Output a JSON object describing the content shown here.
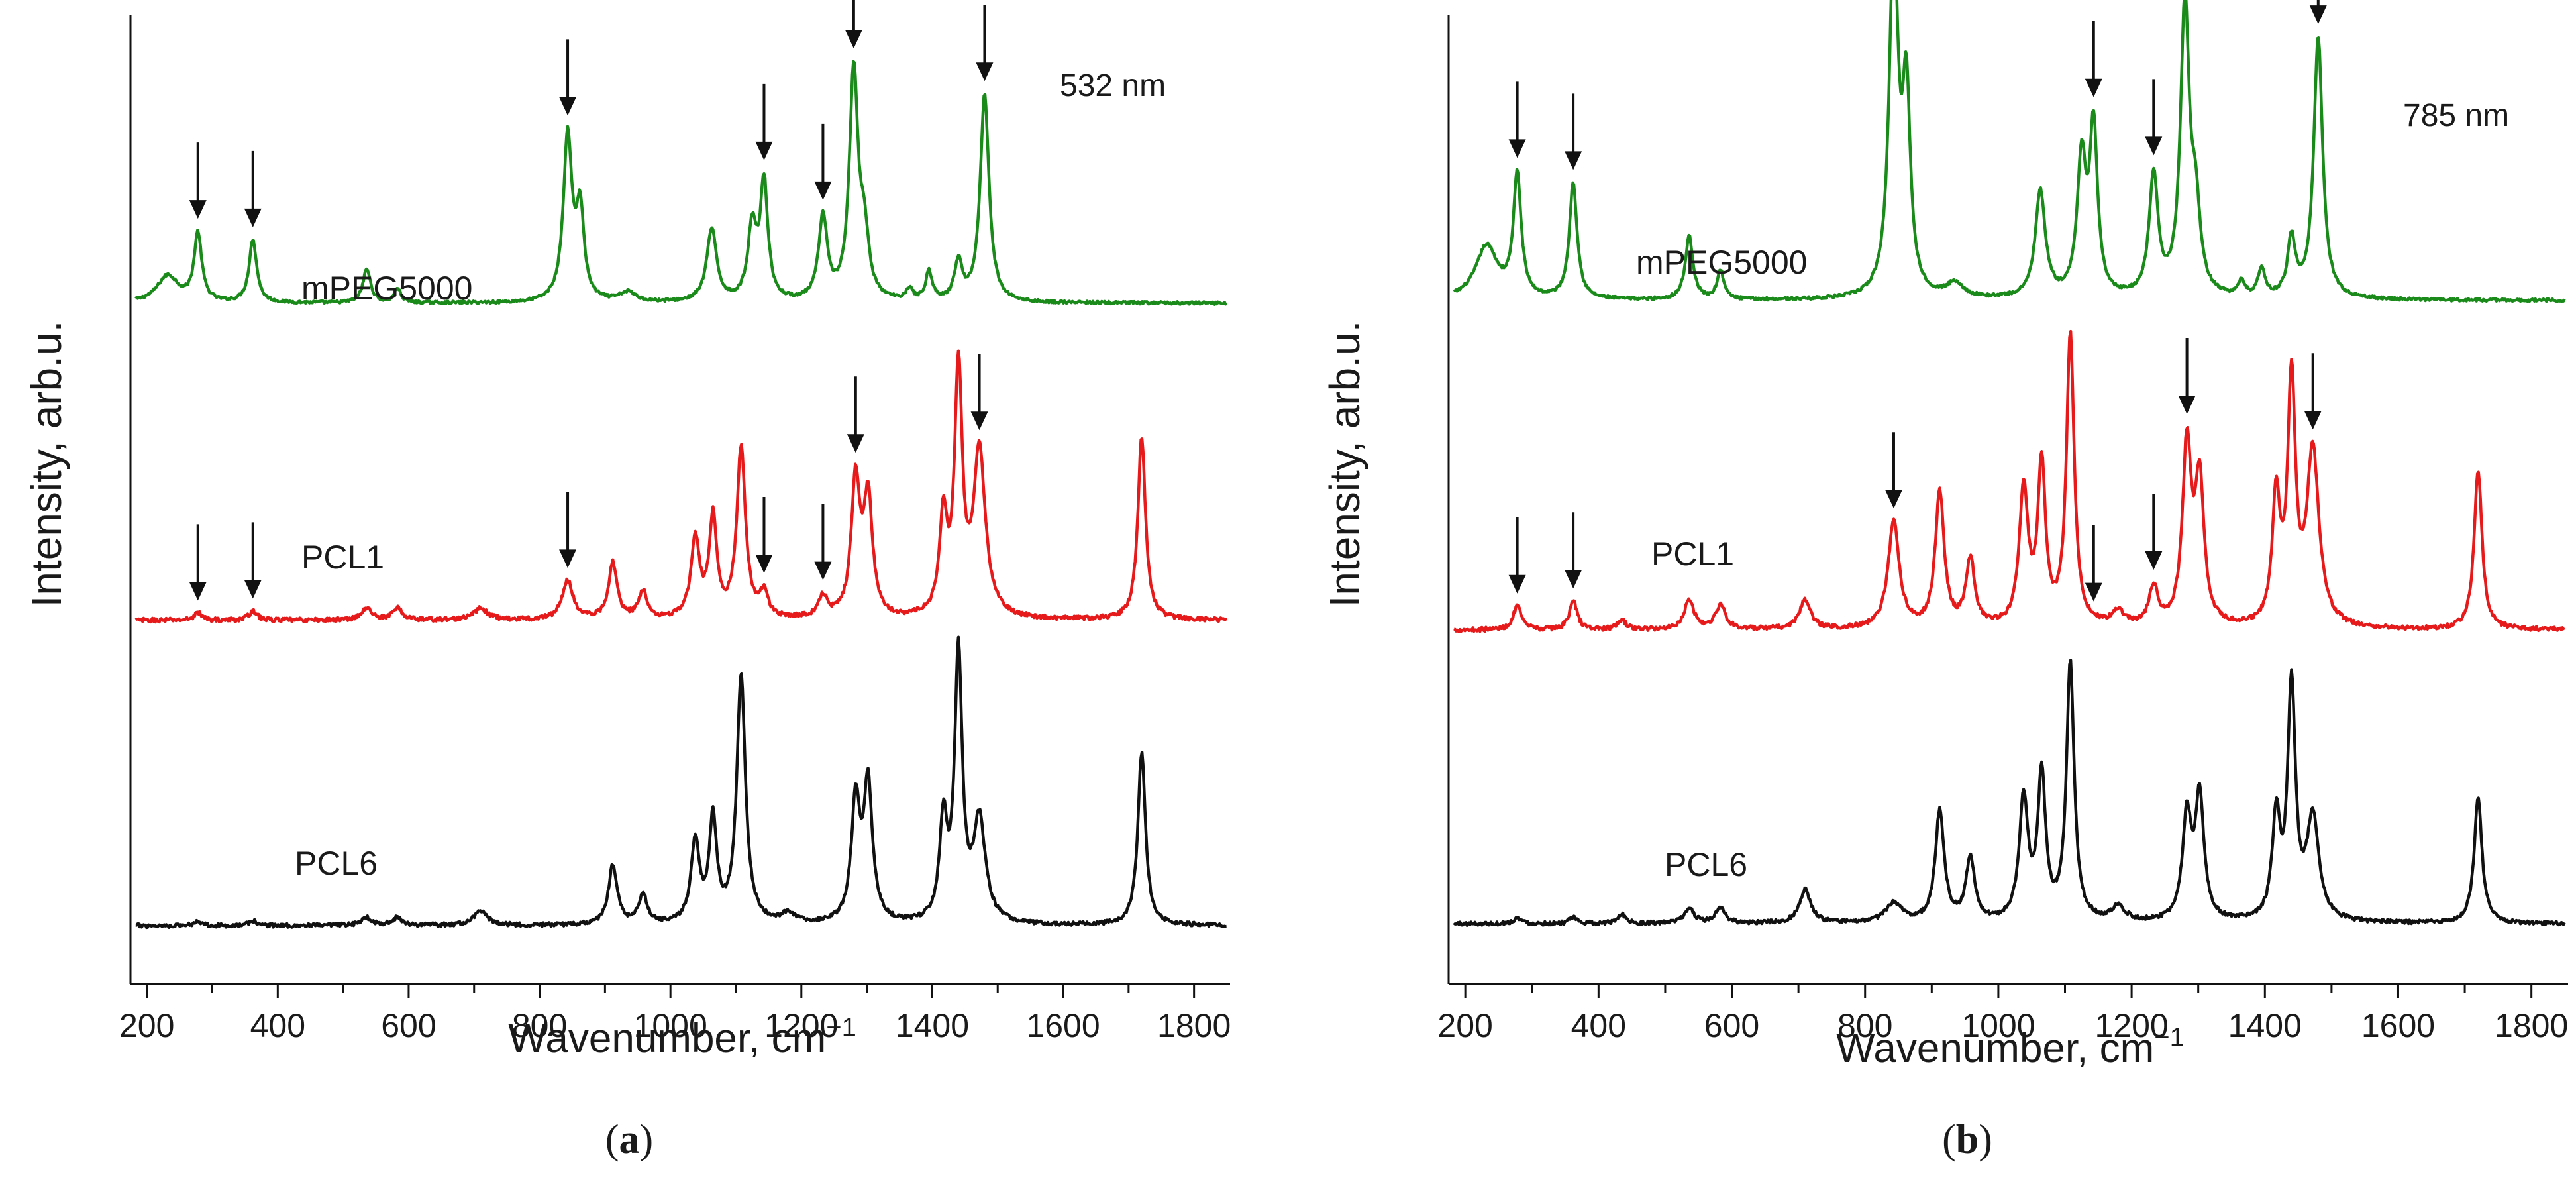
{
  "chart_data": [
    {
      "type": "line",
      "panel_label": "(a)",
      "panel_letter": "a",
      "annotation": "532 nm",
      "xlabel": "Wavenumber, cm",
      "xlabel_superscript": "−1",
      "ylabel": "Intensity, arb.u.",
      "xlim": [
        175,
        1855
      ],
      "ylim": [
        0,
        1
      ],
      "xticks": [
        200,
        400,
        600,
        800,
        1000,
        1200,
        1400,
        1600,
        1800
      ],
      "grid": false,
      "series": [
        {
          "name": "mPEG5000",
          "color": "#1a8a1a",
          "baseline": 0.702,
          "noise": 0.0015,
          "peaks": [
            [
              232,
              0.028,
              40
            ],
            [
              278,
              0.07,
              14
            ],
            [
              362,
              0.065,
              14
            ],
            [
              536,
              0.035,
              14
            ],
            [
              583,
              0.015,
              12
            ],
            [
              843,
              0.17,
              16
            ],
            [
              862,
              0.09,
              14
            ],
            [
              935,
              0.01,
              30
            ],
            [
              1063,
              0.075,
              18
            ],
            [
              1125,
              0.075,
              16
            ],
            [
              1143,
              0.12,
              14
            ],
            [
              1233,
              0.085,
              16
            ],
            [
              1280,
              0.235,
              16
            ],
            [
              1296,
              0.06,
              16
            ],
            [
              1365,
              0.012,
              12
            ],
            [
              1395,
              0.03,
              12
            ],
            [
              1440,
              0.04,
              14
            ],
            [
              1480,
              0.215,
              16
            ]
          ],
          "arrows": [
            278,
            362,
            843,
            1143,
            1233,
            1280,
            1480
          ]
        },
        {
          "name": "PCL1",
          "color": "#e61a1a",
          "baseline": 0.375,
          "noise": 0.0022,
          "peaks": [
            [
              278,
              0.008,
              14
            ],
            [
              362,
              0.01,
              14
            ],
            [
              536,
              0.012,
              20
            ],
            [
              583,
              0.012,
              18
            ],
            [
              710,
              0.012,
              25
            ],
            [
              843,
              0.04,
              20
            ],
            [
              912,
              0.058,
              16
            ],
            [
              958,
              0.028,
              16
            ],
            [
              1038,
              0.08,
              16
            ],
            [
              1065,
              0.102,
              14
            ],
            [
              1108,
              0.175,
              16
            ],
            [
              1143,
              0.025,
              14
            ],
            [
              1233,
              0.022,
              16
            ],
            [
              1283,
              0.14,
              16
            ],
            [
              1302,
              0.12,
              16
            ],
            [
              1417,
              0.1,
              14
            ],
            [
              1440,
              0.252,
              14
            ],
            [
              1472,
              0.17,
              22
            ],
            [
              1720,
              0.188,
              14
            ]
          ],
          "arrows": [
            278,
            362,
            843,
            1143,
            1233,
            1283,
            1472
          ]
        },
        {
          "name": "PCL6",
          "color": "#111111",
          "baseline": 0.06,
          "noise": 0.002,
          "peaks": [
            [
              278,
              0.005,
              14
            ],
            [
              362,
              0.005,
              14
            ],
            [
              536,
              0.008,
              20
            ],
            [
              583,
              0.008,
              18
            ],
            [
              710,
              0.015,
              25
            ],
            [
              912,
              0.062,
              16
            ],
            [
              958,
              0.03,
              16
            ],
            [
              1038,
              0.082,
              16
            ],
            [
              1065,
              0.105,
              14
            ],
            [
              1108,
              0.255,
              16
            ],
            [
              1180,
              0.01,
              25
            ],
            [
              1283,
              0.123,
              16
            ],
            [
              1302,
              0.14,
              16
            ],
            [
              1417,
              0.102,
              14
            ],
            [
              1440,
              0.275,
              14
            ],
            [
              1472,
              0.105,
              22
            ],
            [
              1720,
              0.178,
              14
            ]
          ],
          "arrows": []
        }
      ]
    },
    {
      "type": "line",
      "panel_label": "(b)",
      "panel_letter": "b",
      "annotation": "785 nm",
      "xlabel": "Wavenumber, cm",
      "xlabel_superscript": "−1",
      "ylabel": "Intensity, arb.u.",
      "xlim": [
        175,
        1855
      ],
      "ylim": [
        0,
        1
      ],
      "xticks": [
        200,
        400,
        600,
        800,
        1000,
        1200,
        1400,
        1600,
        1800
      ],
      "grid": false,
      "series": [
        {
          "name": "mPEG5000",
          "color": "#1a8a1a",
          "baseline": 0.705,
          "noise": 0.0015,
          "peaks": [
            [
              232,
              0.055,
              40
            ],
            [
              278,
              0.125,
              14
            ],
            [
              362,
              0.12,
              14
            ],
            [
              536,
              0.065,
              14
            ],
            [
              583,
              0.03,
              12
            ],
            [
              843,
              0.365,
              16
            ],
            [
              862,
              0.2,
              14
            ],
            [
              935,
              0.015,
              30
            ],
            [
              1063,
              0.11,
              18
            ],
            [
              1125,
              0.14,
              16
            ],
            [
              1143,
              0.17,
              14
            ],
            [
              1233,
              0.125,
              16
            ],
            [
              1280,
              0.3,
              16
            ],
            [
              1296,
              0.08,
              16
            ],
            [
              1365,
              0.015,
              12
            ],
            [
              1395,
              0.03,
              12
            ],
            [
              1440,
              0.06,
              14
            ],
            [
              1480,
              0.27,
              16
            ]
          ],
          "arrows": [
            278,
            362,
            843,
            1143,
            1233,
            1280,
            1480
          ]
        },
        {
          "name": "PCL1",
          "color": "#e61a1a",
          "baseline": 0.365,
          "noise": 0.0022,
          "peaks": [
            [
              278,
              0.025,
              14
            ],
            [
              362,
              0.03,
              14
            ],
            [
              435,
              0.01,
              14
            ],
            [
              536,
              0.03,
              18
            ],
            [
              583,
              0.025,
              18
            ],
            [
              710,
              0.03,
              20
            ],
            [
              843,
              0.11,
              20
            ],
            [
              912,
              0.14,
              16
            ],
            [
              958,
              0.07,
              16
            ],
            [
              1038,
              0.14,
              16
            ],
            [
              1065,
              0.165,
              14
            ],
            [
              1108,
              0.3,
              14
            ],
            [
              1180,
              0.015,
              25
            ],
            [
              1233,
              0.04,
              16
            ],
            [
              1283,
              0.185,
              16
            ],
            [
              1302,
              0.145,
              16
            ],
            [
              1417,
              0.13,
              14
            ],
            [
              1440,
              0.25,
              14
            ],
            [
              1472,
              0.18,
              22
            ],
            [
              1720,
              0.165,
              14
            ]
          ],
          "arrows": [
            278,
            362,
            843,
            1143,
            1233,
            1283,
            1472
          ]
        },
        {
          "name": "PCL6",
          "color": "#111111",
          "baseline": 0.062,
          "noise": 0.002,
          "peaks": [
            [
              278,
              0.006,
              14
            ],
            [
              362,
              0.006,
              14
            ],
            [
              435,
              0.01,
              14
            ],
            [
              536,
              0.015,
              18
            ],
            [
              583,
              0.015,
              18
            ],
            [
              710,
              0.035,
              20
            ],
            [
              843,
              0.02,
              30
            ],
            [
              912,
              0.115,
              16
            ],
            [
              958,
              0.065,
              16
            ],
            [
              1038,
              0.125,
              16
            ],
            [
              1065,
              0.15,
              14
            ],
            [
              1108,
              0.265,
              14
            ],
            [
              1180,
              0.015,
              25
            ],
            [
              1283,
              0.105,
              16
            ],
            [
              1302,
              0.125,
              16
            ],
            [
              1417,
              0.105,
              14
            ],
            [
              1440,
              0.24,
              14
            ],
            [
              1472,
              0.105,
              22
            ],
            [
              1720,
              0.13,
              14
            ]
          ],
          "arrows": []
        }
      ]
    }
  ]
}
